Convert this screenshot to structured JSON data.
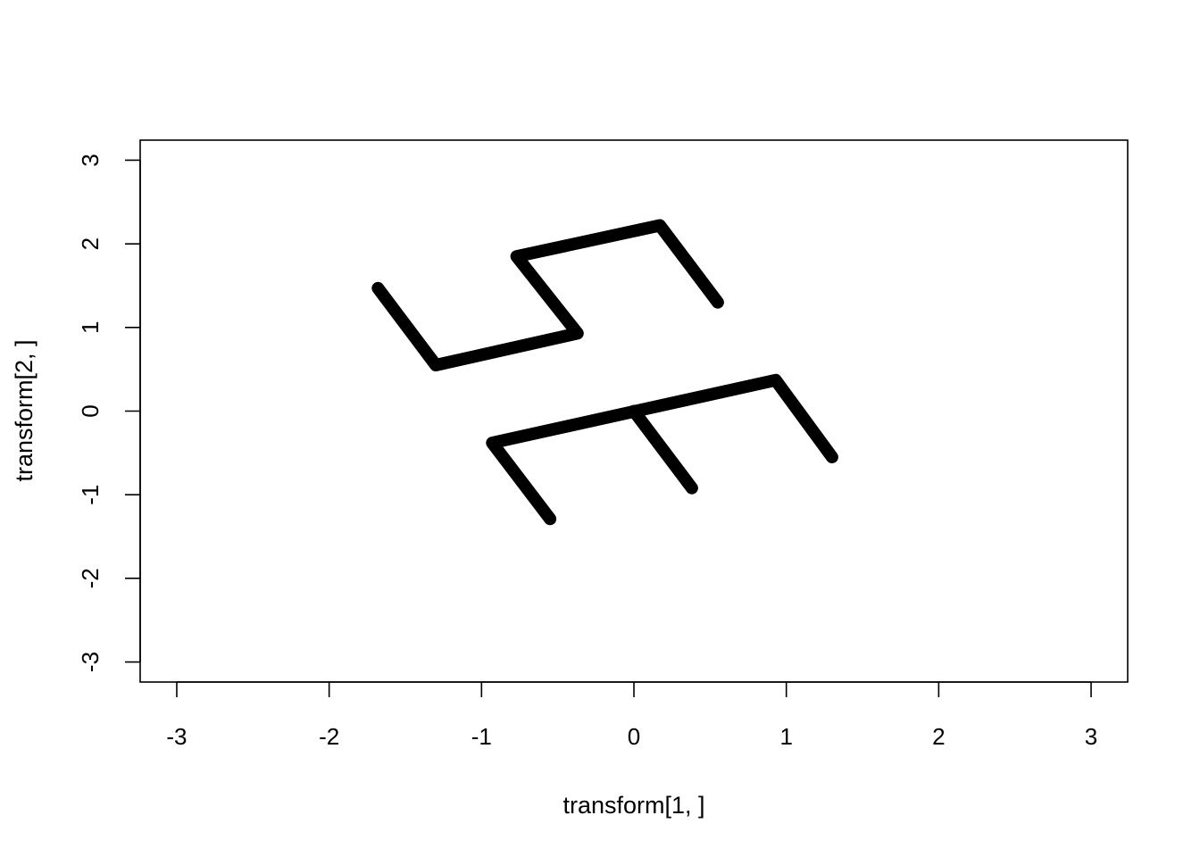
{
  "chart_data": {
    "type": "line",
    "title": "",
    "xlabel": "transform[1, ]",
    "ylabel": "transform[2, ]",
    "xlim": [
      -3.24,
      3.24
    ],
    "ylim": [
      -3.24,
      3.24
    ],
    "x_ticks": [
      -3,
      -2,
      -1,
      0,
      1,
      2,
      3
    ],
    "y_ticks": [
      -3,
      -2,
      -1,
      0,
      1,
      2,
      3
    ],
    "x_tick_labels": [
      "-3",
      "-2",
      "-1",
      "0",
      "1",
      "2",
      "3"
    ],
    "y_tick_labels": [
      "-3",
      "-2",
      "-1",
      "0",
      "1",
      "2",
      "3"
    ],
    "grid": false,
    "legend": "none",
    "line_color": "#000000",
    "series": [
      {
        "points": [
          [
            -1.68,
            1.47
          ],
          [
            -1.3,
            0.55
          ],
          [
            -0.37,
            0.93
          ],
          [
            -0.77,
            1.85
          ],
          [
            0.17,
            2.22
          ],
          [
            0.55,
            1.3
          ]
        ]
      },
      {
        "points": [
          [
            -0.55,
            -1.29
          ],
          [
            -0.93,
            -0.38
          ],
          [
            0.93,
            0.37
          ],
          [
            1.3,
            -0.55
          ]
        ]
      },
      {
        "points": [
          [
            0.0,
            0.0
          ],
          [
            0.38,
            -0.92
          ]
        ]
      }
    ]
  }
}
